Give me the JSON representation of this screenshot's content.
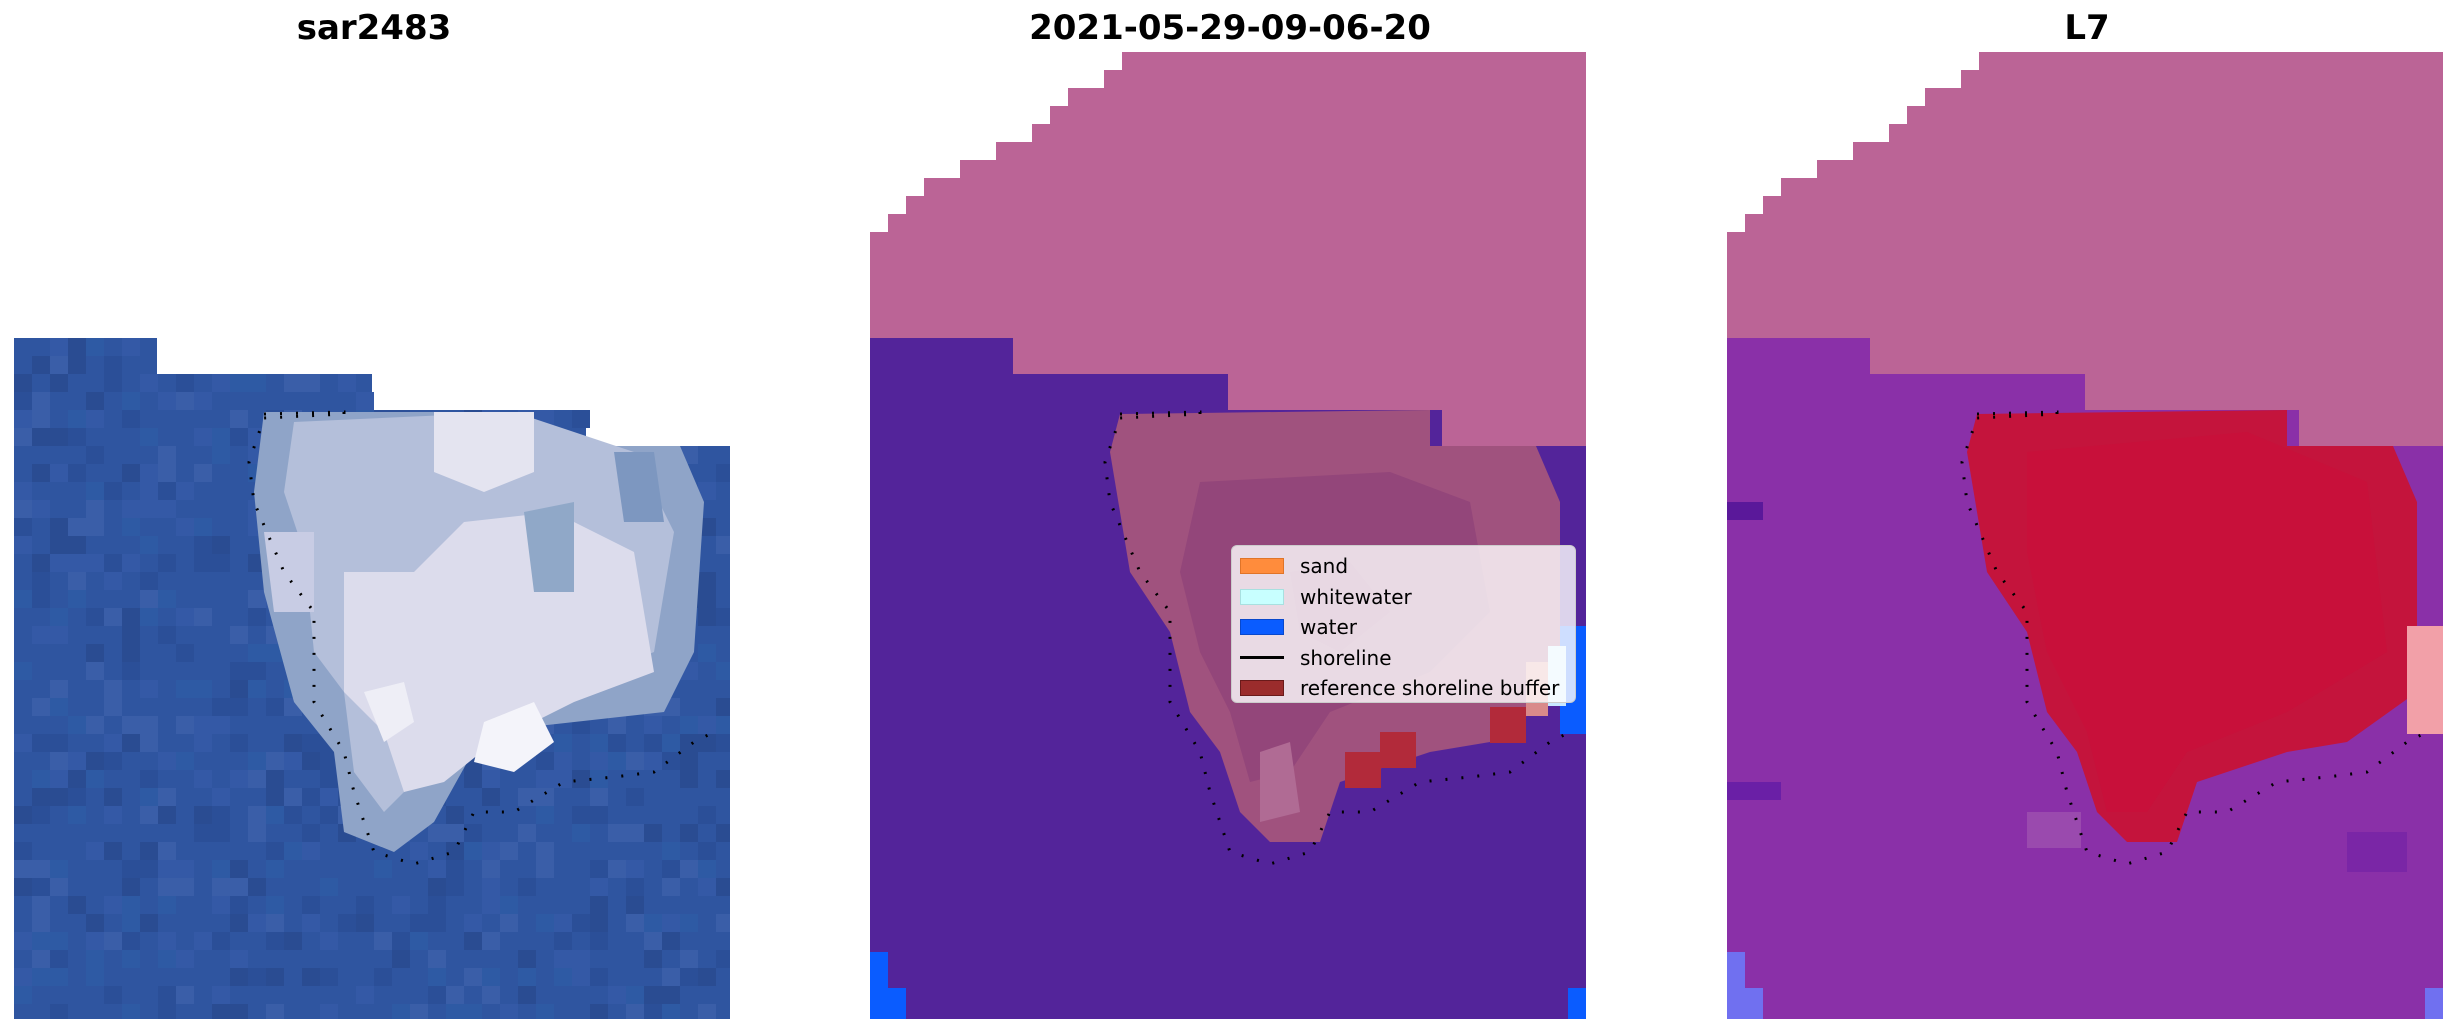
{
  "panels": [
    {
      "title": "sar2483",
      "kind": "rgb"
    },
    {
      "title": "2021-05-29-09-06-20",
      "kind": "classified"
    },
    {
      "title": "L7",
      "kind": "probability"
    }
  ],
  "legend": {
    "items": [
      {
        "label": "sand",
        "type": "patch",
        "color": "#ff8c3c",
        "border": "#e07428"
      },
      {
        "label": "whitewater",
        "type": "patch",
        "color": "#c8ffff",
        "border": "#a8e0e0"
      },
      {
        "label": "water",
        "type": "patch",
        "color": "#0a5cff",
        "border": "#0848cc"
      },
      {
        "label": "shoreline",
        "type": "line",
        "color": "#000000"
      },
      {
        "label": "reference shoreline buffer",
        "type": "patch",
        "color": "#9b2c2c",
        "border": "#6a1a1a"
      }
    ]
  },
  "colors": {
    "sea_rgb": "#2f55a0",
    "land_mask": "#bb6496",
    "water_class": "#53249a",
    "shoreline": "#000000",
    "buffer": "#b22a3a",
    "probability_high": "#c4143c",
    "probability_low": "#8a30a8"
  }
}
